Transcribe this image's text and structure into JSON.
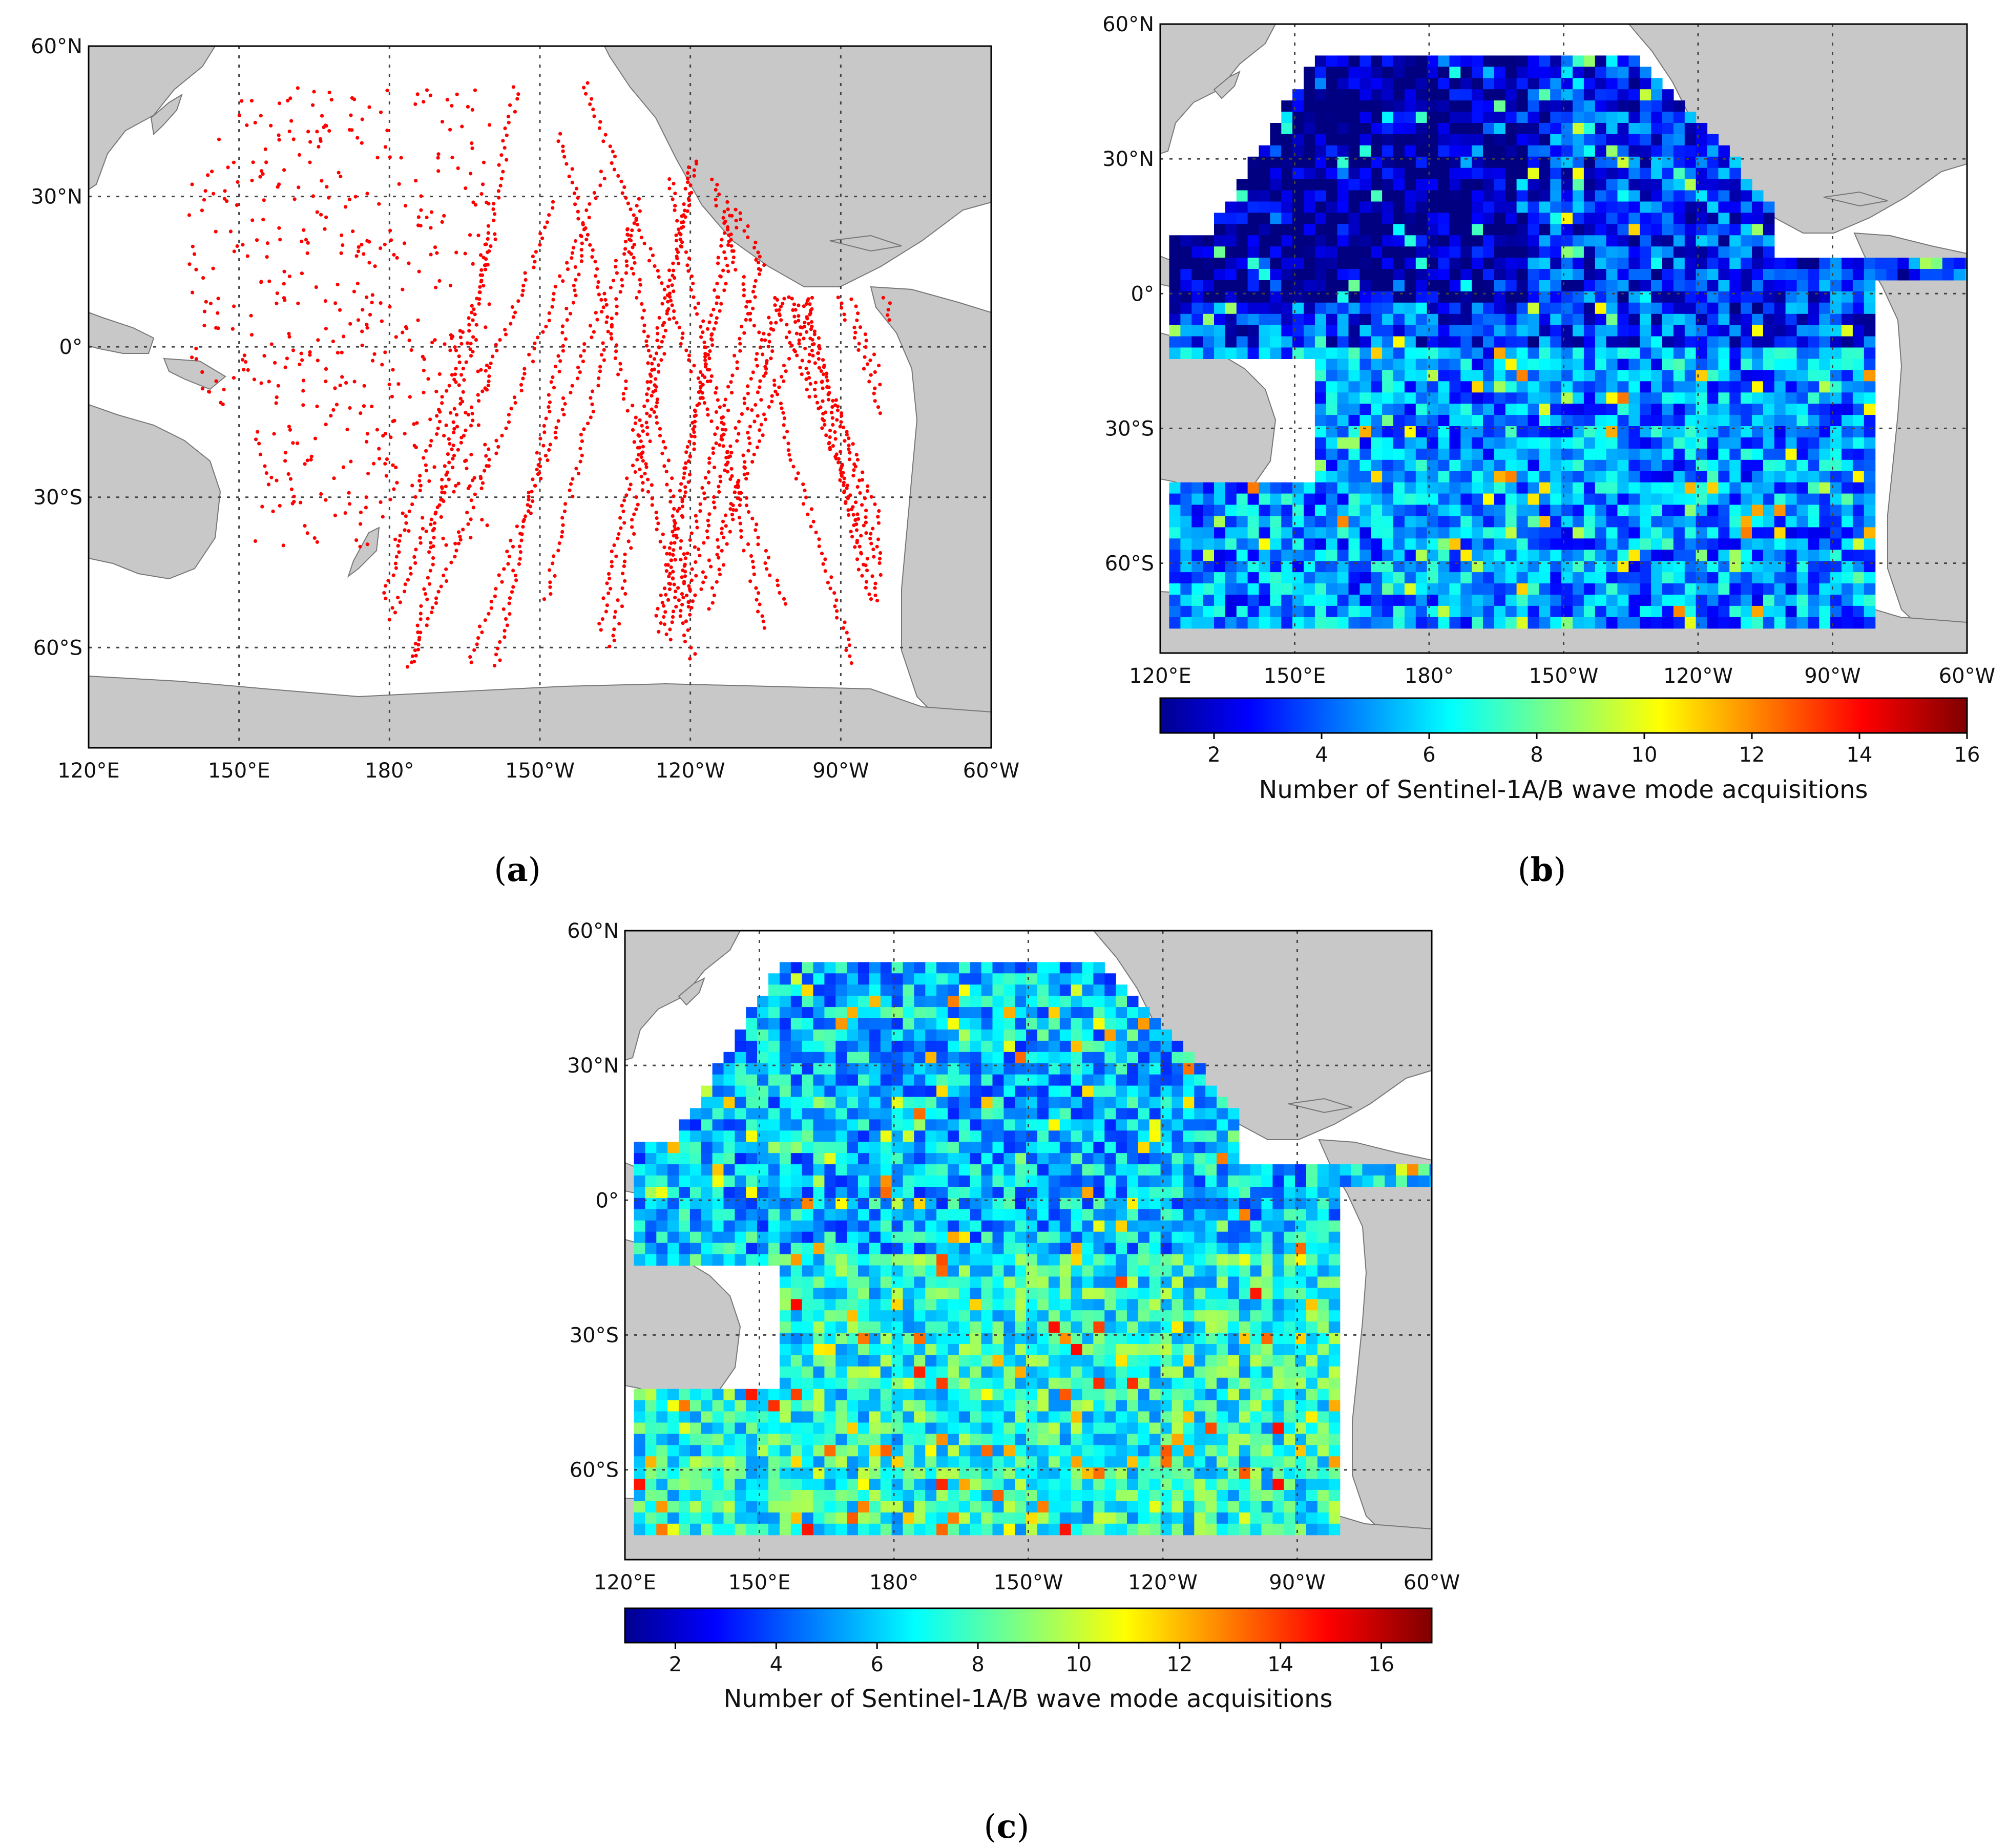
{
  "figure": {
    "panels": [
      {
        "id": "a",
        "label_open": "(",
        "label_letter": "a",
        "label_close": ")",
        "kind": "points",
        "lon_ticks": [
          "120°E",
          "150°E",
          "180°",
          "150°W",
          "120°W",
          "90°W",
          "60°W"
        ],
        "lat_ticks": [
          "60°N",
          "30°N",
          "0°",
          "30°S",
          "60°S"
        ],
        "point_color": "#ff0000"
      },
      {
        "id": "b",
        "label_open": "(",
        "label_letter": "b",
        "label_close": ")",
        "kind": "grid",
        "lon_ticks": [
          "120°E",
          "150°E",
          "180°",
          "150°W",
          "120°W",
          "90°W",
          "60°W"
        ],
        "lat_ticks": [
          "60°N",
          "30°N",
          "0°",
          "30°S",
          "60°S"
        ],
        "colorbar": {
          "ticks": [
            "2",
            "4",
            "6",
            "8",
            "10",
            "12",
            "14",
            "16"
          ],
          "range": [
            1,
            16
          ],
          "title": "Number of Sentinel-1A/B wave mode acquisitions"
        }
      },
      {
        "id": "c",
        "label_open": "(",
        "label_letter": "c",
        "label_close": ")",
        "kind": "grid",
        "lon_ticks": [
          "120°E",
          "150°E",
          "180°",
          "150°W",
          "120°W",
          "90°W",
          "60°W"
        ],
        "lat_ticks": [
          "60°N",
          "30°N",
          "0°",
          "30°S",
          "60°S"
        ],
        "colorbar": {
          "ticks": [
            "2",
            "4",
            "6",
            "8",
            "10",
            "12",
            "14",
            "16"
          ],
          "range": [
            1,
            17
          ],
          "title": "Number of Sentinel-1A/B wave mode acquisitions"
        }
      }
    ],
    "colors": {
      "land": "#c8c8c8",
      "ocean": "#ffffff",
      "grid_line": "#444444",
      "colormap": "jet"
    }
  }
}
